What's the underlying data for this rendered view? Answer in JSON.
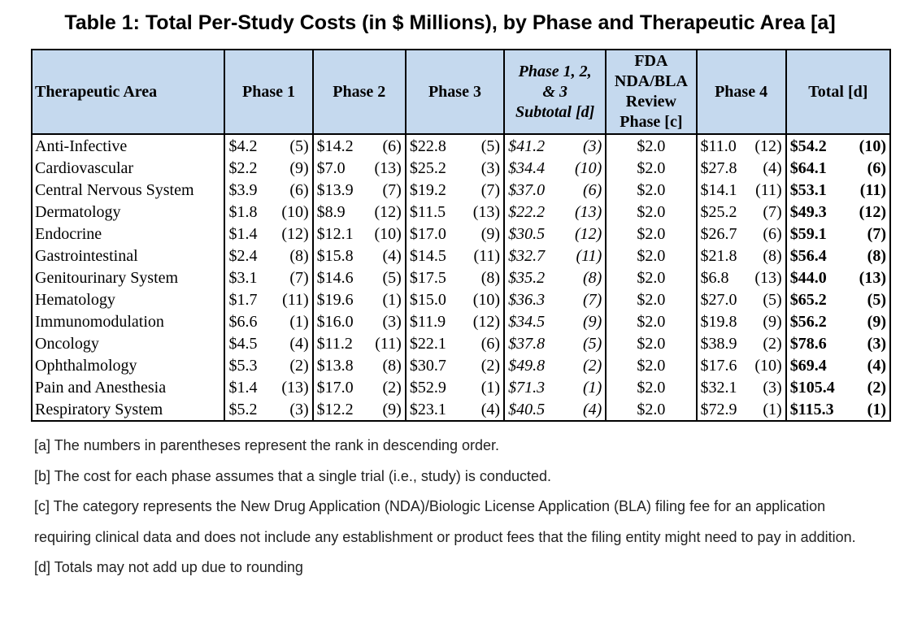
{
  "title": "Table 1: Total Per-Study Costs (in $ Millions), by Phase and Therapeutic Area [a]",
  "headers": {
    "area": "Therapeutic Area",
    "phase1": "Phase 1",
    "phase2": "Phase 2",
    "phase3": "Phase 3",
    "subtotal_l1": "Phase 1, 2,",
    "subtotal_l2": "& 3",
    "subtotal_l3": "Subtotal [d]",
    "fda_l1": "FDA",
    "fda_l2": "NDA/BLA",
    "fda_l3": "Review",
    "fda_l4": "Phase [c]",
    "phase4": "Phase 4",
    "total": "Total [d]"
  },
  "rows": [
    {
      "area": "Anti-Infective",
      "p1": {
        "v": "$4.2",
        "r": "(5)"
      },
      "p2": {
        "v": "$14.2",
        "r": "(6)"
      },
      "p3": {
        "v": "$22.8",
        "r": "(5)"
      },
      "sub": {
        "v": "$41.2",
        "r": "(3)"
      },
      "fee": "$2.0",
      "p4": {
        "v": "$11.0",
        "r": "(12)"
      },
      "tot": {
        "v": "$54.2",
        "r": "(10)"
      }
    },
    {
      "area": "Cardiovascular",
      "p1": {
        "v": "$2.2",
        "r": "(9)"
      },
      "p2": {
        "v": "$7.0",
        "r": "(13)"
      },
      "p3": {
        "v": "$25.2",
        "r": "(3)"
      },
      "sub": {
        "v": "$34.4",
        "r": "(10)"
      },
      "fee": "$2.0",
      "p4": {
        "v": "$27.8",
        "r": "(4)"
      },
      "tot": {
        "v": "$64.1",
        "r": "(6)"
      }
    },
    {
      "area": "Central Nervous System",
      "p1": {
        "v": "$3.9",
        "r": "(6)"
      },
      "p2": {
        "v": "$13.9",
        "r": "(7)"
      },
      "p3": {
        "v": "$19.2",
        "r": "(7)"
      },
      "sub": {
        "v": "$37.0",
        "r": "(6)"
      },
      "fee": "$2.0",
      "p4": {
        "v": "$14.1",
        "r": "(11)"
      },
      "tot": {
        "v": "$53.1",
        "r": "(11)"
      }
    },
    {
      "area": "Dermatology",
      "p1": {
        "v": "$1.8",
        "r": "(10)"
      },
      "p2": {
        "v": "$8.9",
        "r": "(12)"
      },
      "p3": {
        "v": "$11.5",
        "r": "(13)"
      },
      "sub": {
        "v": "$22.2",
        "r": "(13)"
      },
      "fee": "$2.0",
      "p4": {
        "v": "$25.2",
        "r": "(7)"
      },
      "tot": {
        "v": "$49.3",
        "r": "(12)"
      }
    },
    {
      "area": "Endocrine",
      "p1": {
        "v": "$1.4",
        "r": "(12)"
      },
      "p2": {
        "v": "$12.1",
        "r": "(10)"
      },
      "p3": {
        "v": "$17.0",
        "r": "(9)"
      },
      "sub": {
        "v": "$30.5",
        "r": "(12)"
      },
      "fee": "$2.0",
      "p4": {
        "v": "$26.7",
        "r": "(6)"
      },
      "tot": {
        "v": "$59.1",
        "r": "(7)"
      }
    },
    {
      "area": "Gastrointestinal",
      "p1": {
        "v": "$2.4",
        "r": "(8)"
      },
      "p2": {
        "v": "$15.8",
        "r": "(4)"
      },
      "p3": {
        "v": "$14.5",
        "r": "(11)"
      },
      "sub": {
        "v": "$32.7",
        "r": "(11)"
      },
      "fee": "$2.0",
      "p4": {
        "v": "$21.8",
        "r": "(8)"
      },
      "tot": {
        "v": "$56.4",
        "r": "(8)"
      }
    },
    {
      "area": "Genitourinary System",
      "p1": {
        "v": "$3.1",
        "r": "(7)"
      },
      "p2": {
        "v": "$14.6",
        "r": "(5)"
      },
      "p3": {
        "v": "$17.5",
        "r": "(8)"
      },
      "sub": {
        "v": "$35.2",
        "r": "(8)"
      },
      "fee": "$2.0",
      "p4": {
        "v": "$6.8",
        "r": "(13)"
      },
      "tot": {
        "v": "$44.0",
        "r": "(13)"
      }
    },
    {
      "area": "Hematology",
      "p1": {
        "v": "$1.7",
        "r": "(11)"
      },
      "p2": {
        "v": "$19.6",
        "r": "(1)"
      },
      "p3": {
        "v": "$15.0",
        "r": "(10)"
      },
      "sub": {
        "v": "$36.3",
        "r": "(7)"
      },
      "fee": "$2.0",
      "p4": {
        "v": "$27.0",
        "r": "(5)"
      },
      "tot": {
        "v": "$65.2",
        "r": "(5)"
      }
    },
    {
      "area": "Immunomodulation",
      "p1": {
        "v": "$6.6",
        "r": "(1)"
      },
      "p2": {
        "v": "$16.0",
        "r": "(3)"
      },
      "p3": {
        "v": "$11.9",
        "r": "(12)"
      },
      "sub": {
        "v": "$34.5",
        "r": "(9)"
      },
      "fee": "$2.0",
      "p4": {
        "v": "$19.8",
        "r": "(9)"
      },
      "tot": {
        "v": "$56.2",
        "r": "(9)"
      }
    },
    {
      "area": "Oncology",
      "p1": {
        "v": "$4.5",
        "r": "(4)"
      },
      "p2": {
        "v": "$11.2",
        "r": "(11)"
      },
      "p3": {
        "v": "$22.1",
        "r": "(6)"
      },
      "sub": {
        "v": "$37.8",
        "r": "(5)"
      },
      "fee": "$2.0",
      "p4": {
        "v": "$38.9",
        "r": "(2)"
      },
      "tot": {
        "v": "$78.6",
        "r": "(3)"
      }
    },
    {
      "area": "Ophthalmology",
      "p1": {
        "v": "$5.3",
        "r": "(2)"
      },
      "p2": {
        "v": "$13.8",
        "r": "(8)"
      },
      "p3": {
        "v": "$30.7",
        "r": "(2)"
      },
      "sub": {
        "v": "$49.8",
        "r": "(2)"
      },
      "fee": "$2.0",
      "p4": {
        "v": "$17.6",
        "r": "(10)"
      },
      "tot": {
        "v": "$69.4",
        "r": "(4)"
      }
    },
    {
      "area": "Pain and Anesthesia",
      "p1": {
        "v": "$1.4",
        "r": "(13)"
      },
      "p2": {
        "v": "$17.0",
        "r": "(2)"
      },
      "p3": {
        "v": "$52.9",
        "r": "(1)"
      },
      "sub": {
        "v": "$71.3",
        "r": "(1)"
      },
      "fee": "$2.0",
      "p4": {
        "v": "$32.1",
        "r": "(3)"
      },
      "tot": {
        "v": "$105.4",
        "r": "(2)"
      }
    },
    {
      "area": "Respiratory System",
      "p1": {
        "v": "$5.2",
        "r": "(3)"
      },
      "p2": {
        "v": "$12.2",
        "r": "(9)"
      },
      "p3": {
        "v": "$23.1",
        "r": "(4)"
      },
      "sub": {
        "v": "$40.5",
        "r": "(4)"
      },
      "fee": "$2.0",
      "p4": {
        "v": "$72.9",
        "r": "(1)"
      },
      "tot": {
        "v": "$115.3",
        "r": "(1)"
      }
    }
  ],
  "notes": {
    "a": "[a] The numbers in parentheses represent the rank in descending order.",
    "b": "[b] The cost for each phase assumes that a single trial (i.e., study) is conducted.",
    "c": "[c] The category represents the New Drug Application (NDA)/Biologic License Application (BLA) filing fee for an application requiring clinical data and does not include any establishment or product fees that the filing entity might need to pay in addition.",
    "d": "[d] Totals may not add up due to rounding"
  },
  "colors": {
    "header_bg": "#c5d9ee",
    "border": "#000000"
  }
}
